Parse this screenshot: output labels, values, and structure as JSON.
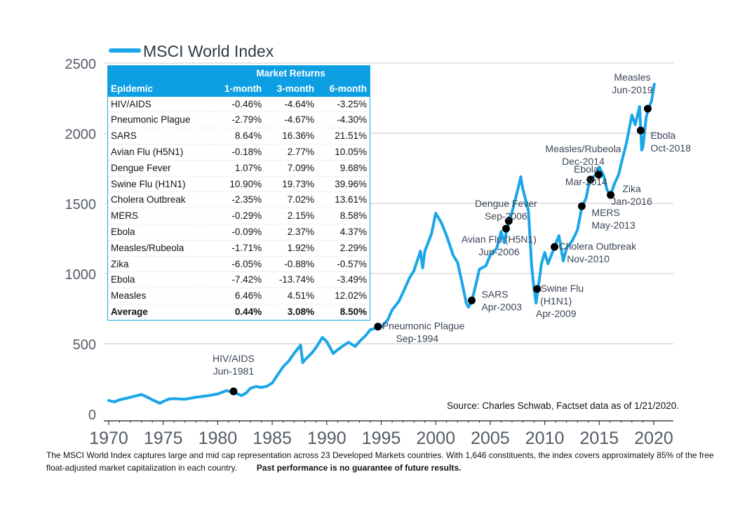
{
  "chart_data": {
    "type": "line",
    "title": "",
    "xlabel": "",
    "ylabel": "",
    "xlim": [
      1970,
      2020.3
    ],
    "ylim": [
      0,
      2500
    ],
    "x_ticks": [
      1970,
      1975,
      1980,
      1985,
      1990,
      1995,
      2000,
      2005,
      2010,
      2015,
      2020
    ],
    "y_ticks": [
      0,
      500,
      1000,
      1500,
      2000,
      2500
    ],
    "grid": "horizontal",
    "legend": "top-left",
    "series": [
      {
        "name": "MSCI World Index",
        "color": "#1aa6e8",
        "points": [
          [
            1970.0,
            95
          ],
          [
            1970.5,
            85
          ],
          [
            1971.0,
            100
          ],
          [
            1971.7,
            112
          ],
          [
            1972.5,
            128
          ],
          [
            1973.0,
            138
          ],
          [
            1973.5,
            120
          ],
          [
            1974.0,
            100
          ],
          [
            1974.7,
            75
          ],
          [
            1975.0,
            88
          ],
          [
            1975.5,
            105
          ],
          [
            1976.0,
            108
          ],
          [
            1977.0,
            104
          ],
          [
            1978.0,
            118
          ],
          [
            1979.0,
            128
          ],
          [
            1980.0,
            142
          ],
          [
            1980.8,
            165
          ],
          [
            1981.5,
            152
          ],
          [
            1982.2,
            130
          ],
          [
            1982.6,
            148
          ],
          [
            1983.0,
            182
          ],
          [
            1983.5,
            195
          ],
          [
            1984.0,
            188
          ],
          [
            1984.5,
            196
          ],
          [
            1985.0,
            220
          ],
          [
            1985.6,
            290
          ],
          [
            1986.0,
            335
          ],
          [
            1986.5,
            375
          ],
          [
            1987.0,
            430
          ],
          [
            1987.6,
            490
          ],
          [
            1987.8,
            365
          ],
          [
            1988.0,
            385
          ],
          [
            1988.6,
            430
          ],
          [
            1989.0,
            470
          ],
          [
            1989.6,
            545
          ],
          [
            1990.0,
            515
          ],
          [
            1990.6,
            430
          ],
          [
            1990.9,
            450
          ],
          [
            1991.5,
            485
          ],
          [
            1992.0,
            510
          ],
          [
            1992.6,
            480
          ],
          [
            1993.0,
            515
          ],
          [
            1993.6,
            560
          ],
          [
            1994.0,
            600
          ],
          [
            1994.5,
            610
          ],
          [
            1994.7,
            622
          ],
          [
            1995.0,
            618
          ],
          [
            1995.6,
            670
          ],
          [
            1996.0,
            740
          ],
          [
            1996.6,
            800
          ],
          [
            1997.0,
            865
          ],
          [
            1997.6,
            970
          ],
          [
            1998.0,
            1020
          ],
          [
            1998.6,
            1160
          ],
          [
            1998.8,
            1040
          ],
          [
            1999.0,
            1160
          ],
          [
            1999.6,
            1280
          ],
          [
            2000.0,
            1430
          ],
          [
            2000.5,
            1365
          ],
          [
            2001.0,
            1270
          ],
          [
            2001.6,
            1130
          ],
          [
            2002.0,
            1080
          ],
          [
            2002.5,
            905
          ],
          [
            2002.8,
            790
          ],
          [
            2003.0,
            760
          ],
          [
            2003.3,
            800
          ],
          [
            2003.8,
            960
          ],
          [
            2004.0,
            1030
          ],
          [
            2004.6,
            1055
          ],
          [
            2005.0,
            1130
          ],
          [
            2005.6,
            1180
          ],
          [
            2006.0,
            1300
          ],
          [
            2006.3,
            1220
          ],
          [
            2006.5,
            1310
          ],
          [
            2006.8,
            1390
          ],
          [
            2007.0,
            1440
          ],
          [
            2007.6,
            1620
          ],
          [
            2007.8,
            1690
          ],
          [
            2008.0,
            1600
          ],
          [
            2008.5,
            1450
          ],
          [
            2008.8,
            1050
          ],
          [
            2009.0,
            900
          ],
          [
            2009.2,
            790
          ],
          [
            2009.4,
            900
          ],
          [
            2009.7,
            1070
          ],
          [
            2010.0,
            1150
          ],
          [
            2010.3,
            1070
          ],
          [
            2010.7,
            1150
          ],
          [
            2011.0,
            1210
          ],
          [
            2011.3,
            1270
          ],
          [
            2011.7,
            1090
          ],
          [
            2012.0,
            1180
          ],
          [
            2012.5,
            1230
          ],
          [
            2013.0,
            1310
          ],
          [
            2013.4,
            1470
          ],
          [
            2013.8,
            1540
          ],
          [
            2014.0,
            1620
          ],
          [
            2014.2,
            1670
          ],
          [
            2014.6,
            1700
          ],
          [
            2015.0,
            1760
          ],
          [
            2015.4,
            1700
          ],
          [
            2015.7,
            1600
          ],
          [
            2016.0,
            1555
          ],
          [
            2016.4,
            1640
          ],
          [
            2016.8,
            1710
          ],
          [
            2017.0,
            1780
          ],
          [
            2017.5,
            1930
          ],
          [
            2018.0,
            2130
          ],
          [
            2018.3,
            2060
          ],
          [
            2018.7,
            2190
          ],
          [
            2018.9,
            1880
          ],
          [
            2019.0,
            1900
          ],
          [
            2019.3,
            2110
          ],
          [
            2019.5,
            2170
          ],
          [
            2019.8,
            2230
          ],
          [
            2020.05,
            2350
          ]
        ]
      }
    ],
    "events": [
      {
        "label": "HIV/AIDS",
        "date": "Jun-1981",
        "x": 1981.45,
        "y": 160
      },
      {
        "label": "Pneumonic Plague",
        "date": "Sep-1994",
        "x": 1994.7,
        "y": 622
      },
      {
        "label": "SARS",
        "date": "Apr-2003",
        "x": 2003.3,
        "y": 808
      },
      {
        "label": "Avian Flu (H5N1)",
        "date": "Jun-2006",
        "x": 2006.45,
        "y": 1320
      },
      {
        "label": "Dengue Fever",
        "date": "Sep-2006",
        "x": 2006.7,
        "y": 1375
      },
      {
        "label": "Swine Flu",
        "line2": "(H1N1)",
        "date": "Apr-2009",
        "x": 2009.3,
        "y": 890
      },
      {
        "label": "Cholera Outbreak",
        "date": "Nov-2010",
        "x": 2010.9,
        "y": 1190
      },
      {
        "label": "MERS",
        "date": "May-2013",
        "x": 2013.4,
        "y": 1480
      },
      {
        "label": "Ebola",
        "date": "Mar-2014",
        "x": 2014.2,
        "y": 1670
      },
      {
        "label": "Measles/Rubeola",
        "date": "Dec-2014",
        "x": 2014.95,
        "y": 1705
      },
      {
        "label": "Zika",
        "date": "Jan-2016",
        "x": 2016.05,
        "y": 1560
      },
      {
        "label": "Ebola",
        "date": "Oct-2018",
        "x": 2018.8,
        "y": 2020
      },
      {
        "label": "Measles",
        "date": "Jun-2019",
        "x": 2019.45,
        "y": 2175
      }
    ],
    "source": "Source: Charles Schwab, Factset data as of 1/21/2020."
  },
  "table": {
    "group_header": "Market Returns",
    "columns": [
      "Epidemic",
      "1-month",
      "3-month",
      "6-month"
    ],
    "rows": [
      [
        "HIV/AIDS",
        "-0.46%",
        "-4.64%",
        "-3.25%"
      ],
      [
        "Pneumonic Plague",
        "-2.79%",
        "-4.67%",
        "-4.30%"
      ],
      [
        "SARS",
        "8.64%",
        "16.36%",
        "21.51%"
      ],
      [
        "Avian Flu (H5N1)",
        "-0.18%",
        "2.77%",
        "10.05%"
      ],
      [
        "Dengue Fever",
        "1.07%",
        "7.09%",
        "9.68%"
      ],
      [
        "Swine Flu (H1N1)",
        "10.90%",
        "19.73%",
        "39.96%"
      ],
      [
        "Cholera Outbreak",
        "-2.35%",
        "7.02%",
        "13.61%"
      ],
      [
        "MERS",
        "-0.29%",
        "2.15%",
        "8.58%"
      ],
      [
        "Ebola",
        "-0.09%",
        "2.37%",
        "4.37%"
      ],
      [
        "Measles/Rubeola",
        "-1.71%",
        "1.92%",
        "2.29%"
      ],
      [
        "Zika",
        "-6.05%",
        "-0.88%",
        "-0.57%"
      ],
      [
        "Ebola",
        "-7.42%",
        "-13.74%",
        "-3.49%"
      ],
      [
        "Measles",
        "6.46%",
        "4.51%",
        "12.02%"
      ]
    ],
    "average": [
      "Average",
      "0.44%",
      "3.08%",
      "8.50%"
    ]
  },
  "footnote": {
    "text": "The MSCI World Index captures large and mid cap representation across 23 Developed Markets countries. With 1,646 constituents, the index covers approximately 85% of the free float-adjusted market capitalization in each country.",
    "disclaimer": "Past performance is no guarantee of future results."
  }
}
